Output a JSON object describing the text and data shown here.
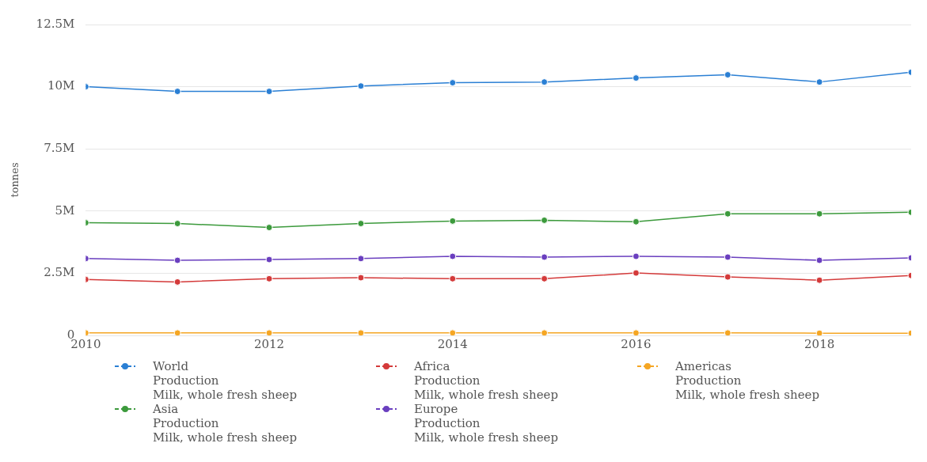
{
  "chart_data": {
    "type": "line",
    "ylabel": "tonnes",
    "x": [
      2010,
      2011,
      2012,
      2013,
      2014,
      2015,
      2016,
      2017,
      2018,
      2019
    ],
    "series": [
      {
        "name": "World\nProduction\nMilk, whole fresh sheep",
        "color": "#2a7fd4",
        "values": [
          10000000,
          9810000,
          9810000,
          10030000,
          10160000,
          10190000,
          10350000,
          10480000,
          10190000,
          10580000
        ]
      },
      {
        "name": "Africa\nProduction\nMilk, whole fresh sheep",
        "color": "#d43a3a",
        "values": [
          2250000,
          2150000,
          2280000,
          2320000,
          2280000,
          2280000,
          2510000,
          2350000,
          2220000,
          2410000
        ]
      },
      {
        "name": "Americas\nProduction\nMilk, whole fresh sheep",
        "color": "#f5a623",
        "values": [
          100000,
          100000,
          100000,
          100000,
          100000,
          100000,
          100000,
          100000,
          90000,
          90000
        ]
      },
      {
        "name": "Asia\nProduction\nMilk, whole fresh sheep",
        "color": "#3c9a3c",
        "values": [
          4530000,
          4500000,
          4340000,
          4500000,
          4600000,
          4630000,
          4570000,
          4890000,
          4890000,
          4950000
        ]
      },
      {
        "name": "Europe\nProduction\nMilk, whole fresh sheep",
        "color": "#6a3fbf",
        "values": [
          3090000,
          3020000,
          3050000,
          3090000,
          3180000,
          3150000,
          3180000,
          3150000,
          3020000,
          3120000
        ]
      }
    ],
    "xlim": [
      2010,
      2019
    ],
    "xticks": [
      2010,
      2012,
      2014,
      2016,
      2018
    ],
    "ylim": [
      0,
      12500000
    ],
    "yticks": [
      {
        "value": 0,
        "label": "0"
      },
      {
        "value": 2500000,
        "label": "2.5M"
      },
      {
        "value": 5000000,
        "label": "5M"
      },
      {
        "value": 7500000,
        "label": "7.5M"
      },
      {
        "value": 10000000,
        "label": "10M"
      },
      {
        "value": 12500000,
        "label": "12.5M"
      }
    ],
    "grid": "y",
    "legend": "bottom",
    "marker": "circle",
    "line_style": "solid"
  }
}
